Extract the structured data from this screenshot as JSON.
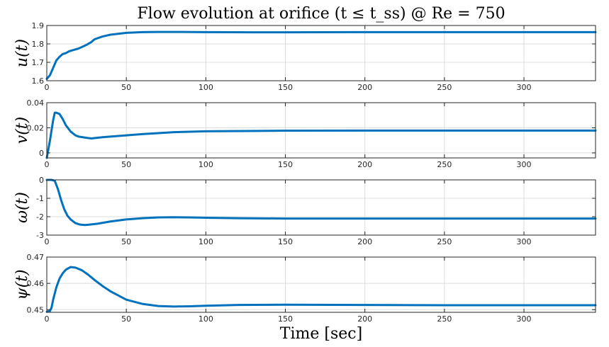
{
  "figure": {
    "title": "Flow evolution at orifice  (t ≤ t_ss) @ Re = 750",
    "xlabel": "Time [sec]"
  },
  "colors": {
    "line": "#0072BD",
    "grid": "#dcdcdc",
    "axes": "#262626"
  },
  "chart_data": [
    {
      "type": "line",
      "ylabel": "u(t)",
      "xlim": [
        0,
        345
      ],
      "ylim": [
        1.6,
        1.9
      ],
      "xticks": [
        0,
        50,
        100,
        150,
        200,
        250,
        300
      ],
      "yticks": [
        1.6,
        1.7,
        1.8,
        1.9
      ],
      "ytick_labels": [
        "1.6",
        "1.7",
        "1.8",
        "1.9"
      ],
      "grid": true,
      "series": [
        {
          "x": [
            0,
            2,
            4,
            6,
            8,
            10,
            12,
            14,
            16,
            18,
            20,
            25,
            28,
            30,
            35,
            40,
            50,
            60,
            70,
            80,
            100,
            130,
            150,
            200,
            250,
            300,
            345
          ],
          "y": [
            1.61,
            1.63,
            1.67,
            1.71,
            1.73,
            1.745,
            1.75,
            1.76,
            1.765,
            1.77,
            1.775,
            1.795,
            1.81,
            1.825,
            1.84,
            1.85,
            1.86,
            1.864,
            1.865,
            1.865,
            1.864,
            1.863,
            1.863,
            1.864,
            1.864,
            1.864,
            1.864
          ]
        }
      ]
    },
    {
      "type": "line",
      "ylabel": "v(t)",
      "xlim": [
        0,
        345
      ],
      "ylim": [
        -0.004,
        0.04
      ],
      "xticks": [
        0,
        50,
        100,
        150,
        200,
        250,
        300
      ],
      "yticks": [
        0,
        0.02,
        0.04
      ],
      "ytick_labels": [
        "0",
        "0.02",
        "0.04"
      ],
      "grid": true,
      "series": [
        {
          "x": [
            0,
            2,
            4,
            5,
            6,
            8,
            10,
            12,
            15,
            18,
            20,
            25,
            28,
            30,
            35,
            40,
            50,
            60,
            80,
            100,
            150,
            200,
            250,
            300,
            345
          ],
          "y": [
            -0.004,
            0.01,
            0.026,
            0.032,
            0.032,
            0.031,
            0.027,
            0.022,
            0.017,
            0.014,
            0.013,
            0.012,
            0.0115,
            0.0118,
            0.0125,
            0.013,
            0.014,
            0.015,
            0.0165,
            0.0172,
            0.0177,
            0.0178,
            0.0178,
            0.0178,
            0.0178
          ]
        }
      ]
    },
    {
      "type": "line",
      "ylabel": "ω(t)",
      "xlim": [
        0,
        345
      ],
      "ylim": [
        -3,
        0
      ],
      "xticks": [
        0,
        50,
        100,
        150,
        200,
        250,
        300
      ],
      "yticks": [
        0,
        -1,
        -2,
        -3
      ],
      "ytick_labels": [
        "0",
        "-1",
        "-2",
        "-3"
      ],
      "grid": true,
      "series": [
        {
          "x": [
            0,
            3,
            5,
            7,
            9,
            11,
            13,
            15,
            18,
            21,
            24,
            28,
            32,
            40,
            50,
            60,
            70,
            80,
            90,
            100,
            120,
            150,
            200,
            250,
            300,
            345
          ],
          "y": [
            0,
            0,
            -0.05,
            -0.5,
            -1.1,
            -1.6,
            -1.95,
            -2.15,
            -2.35,
            -2.43,
            -2.45,
            -2.42,
            -2.38,
            -2.26,
            -2.15,
            -2.08,
            -2.04,
            -2.03,
            -2.04,
            -2.06,
            -2.08,
            -2.1,
            -2.1,
            -2.1,
            -2.1,
            -2.1
          ]
        }
      ]
    },
    {
      "type": "line",
      "ylabel": "ψ(t)",
      "xlim": [
        0,
        345
      ],
      "ylim": [
        0.449,
        0.47
      ],
      "xticks": [
        0,
        50,
        100,
        150,
        200,
        250,
        300
      ],
      "yticks": [
        0.45,
        0.46,
        0.47
      ],
      "ytick_labels": [
        "0.45",
        "0.46",
        "0.47"
      ],
      "grid": true,
      "series": [
        {
          "x": [
            0,
            2,
            3,
            4,
            6,
            8,
            10,
            12,
            15,
            18,
            22,
            26,
            30,
            35,
            40,
            50,
            60,
            70,
            80,
            90,
            100,
            120,
            150,
            200,
            250,
            300,
            345
          ],
          "y": [
            0.4492,
            0.4495,
            0.4508,
            0.4538,
            0.4585,
            0.4618,
            0.4638,
            0.4652,
            0.4662,
            0.466,
            0.465,
            0.4633,
            0.4613,
            0.459,
            0.457,
            0.4538,
            0.4522,
            0.4514,
            0.4512,
            0.4513,
            0.4515,
            0.4518,
            0.4519,
            0.4518,
            0.4517,
            0.4517,
            0.4517
          ]
        }
      ]
    }
  ]
}
